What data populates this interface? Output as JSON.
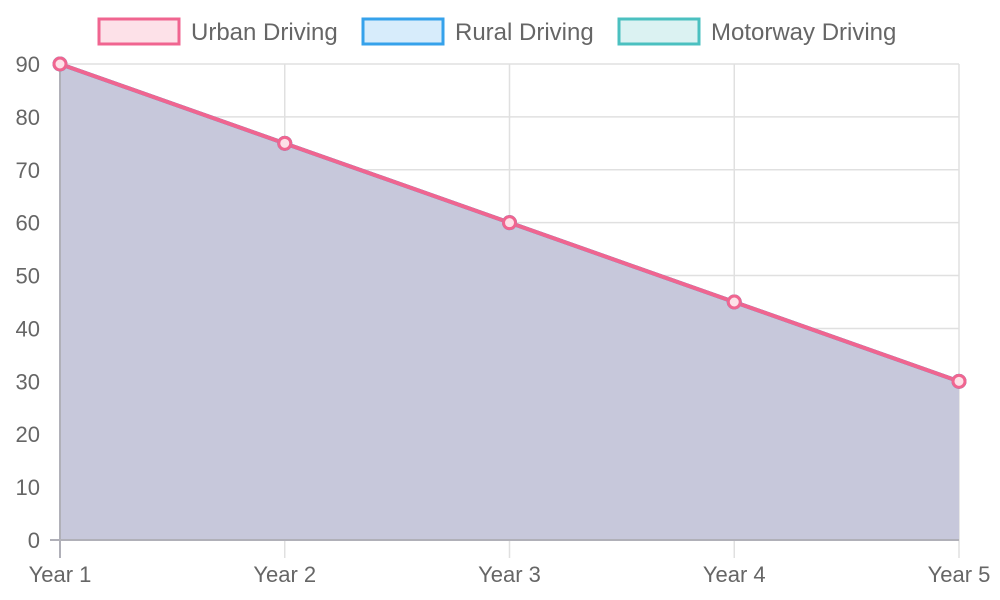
{
  "chart_data": {
    "type": "area",
    "categories": [
      "Year 1",
      "Year 2",
      "Year 3",
      "Year 4",
      "Year 5"
    ],
    "series": [
      {
        "name": "Urban Driving",
        "values": [
          90,
          75,
          60,
          45,
          30
        ],
        "stroke": "#f06590",
        "fill": "#fde1e8"
      },
      {
        "name": "Rural Driving",
        "values": [
          90,
          75,
          60,
          45,
          30
        ],
        "stroke": "#36a2eb",
        "fill": "#d7ecfb"
      },
      {
        "name": "Motorway Driving",
        "values": [
          90,
          75,
          60,
          45,
          30
        ],
        "stroke": "#4bc0c0",
        "fill": "#dbf2f2"
      }
    ],
    "area_fill": "#c7c8db",
    "yticks": [
      0,
      10,
      20,
      30,
      40,
      50,
      60,
      70,
      80,
      90
    ],
    "ylim": [
      0,
      90
    ],
    "grid": true,
    "legend_position": "top",
    "title": "",
    "xlabel": "",
    "ylabel": ""
  }
}
